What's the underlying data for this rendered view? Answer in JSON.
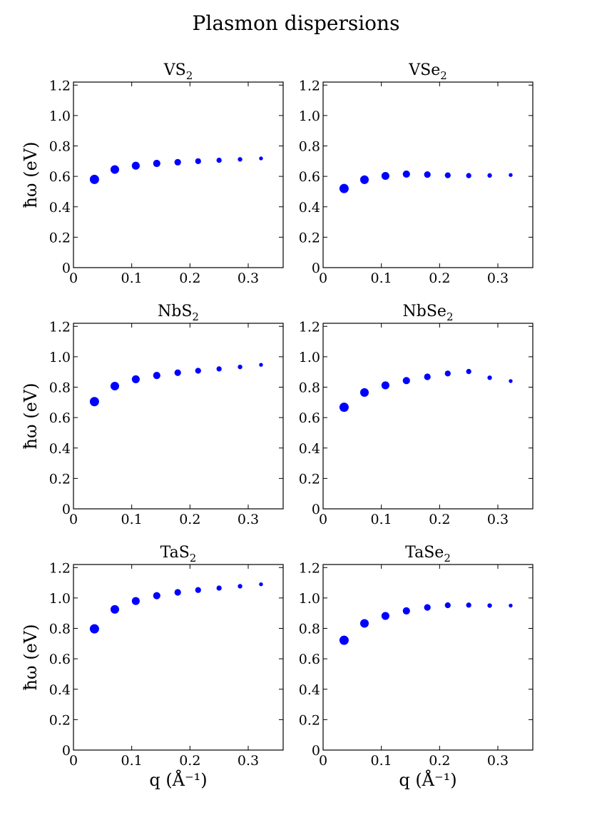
{
  "title": "Plasmon dispersions",
  "shared": {
    "xlabel": "q (Å⁻¹)",
    "ylabel": "ħω (eV)",
    "xlim": [
      0,
      0.36
    ],
    "ylim": [
      0,
      1.22
    ],
    "xticks": [
      0,
      0.1,
      0.2,
      0.3
    ],
    "xtick_labels": [
      "0",
      "0.1",
      "0.2",
      "0.3"
    ],
    "yticks": [
      0,
      0.2,
      0.4,
      0.6,
      0.8,
      1.0,
      1.2
    ],
    "ytick_labels": [
      "0",
      "0.2",
      "0.4",
      "0.6",
      "0.8",
      "1.0",
      "1.2"
    ],
    "marker_color": "#0000ff"
  },
  "chart_data": [
    {
      "type": "scatter",
      "title": "VS2",
      "title_base": "VS",
      "title_sub": "2",
      "x": [
        0.036,
        0.071,
        0.107,
        0.143,
        0.179,
        0.214,
        0.25,
        0.286,
        0.322
      ],
      "y": [
        0.58,
        0.645,
        0.67,
        0.685,
        0.693,
        0.7,
        0.706,
        0.712,
        0.718
      ]
    },
    {
      "type": "scatter",
      "title": "VSe2",
      "title_base": "VSe",
      "title_sub": "2",
      "x": [
        0.036,
        0.071,
        0.107,
        0.143,
        0.179,
        0.214,
        0.25,
        0.286,
        0.322
      ],
      "y": [
        0.52,
        0.578,
        0.603,
        0.615,
        0.612,
        0.607,
        0.605,
        0.606,
        0.609
      ]
    },
    {
      "type": "scatter",
      "title": "NbS2",
      "title_base": "NbS",
      "title_sub": "2",
      "x": [
        0.036,
        0.071,
        0.107,
        0.143,
        0.179,
        0.214,
        0.25,
        0.286,
        0.322
      ],
      "y": [
        0.705,
        0.807,
        0.852,
        0.877,
        0.895,
        0.908,
        0.92,
        0.933,
        0.947
      ]
    },
    {
      "type": "scatter",
      "title": "NbSe2",
      "title_base": "NbSe",
      "title_sub": "2",
      "x": [
        0.036,
        0.071,
        0.107,
        0.143,
        0.179,
        0.214,
        0.25,
        0.286,
        0.322
      ],
      "y": [
        0.668,
        0.765,
        0.812,
        0.843,
        0.868,
        0.89,
        0.903,
        0.862,
        0.84
      ]
    },
    {
      "type": "scatter",
      "title": "TaS2",
      "title_base": "TaS",
      "title_sub": "2",
      "x": [
        0.036,
        0.071,
        0.107,
        0.143,
        0.179,
        0.214,
        0.25,
        0.286,
        0.322
      ],
      "y": [
        0.797,
        0.925,
        0.98,
        1.015,
        1.037,
        1.052,
        1.065,
        1.077,
        1.09
      ]
    },
    {
      "type": "scatter",
      "title": "TaSe2",
      "title_base": "TaSe",
      "title_sub": "2",
      "x": [
        0.036,
        0.071,
        0.107,
        0.143,
        0.179,
        0.214,
        0.25,
        0.286,
        0.322
      ],
      "y": [
        0.722,
        0.833,
        0.882,
        0.915,
        0.938,
        0.952,
        0.953,
        0.95,
        0.95
      ]
    }
  ]
}
